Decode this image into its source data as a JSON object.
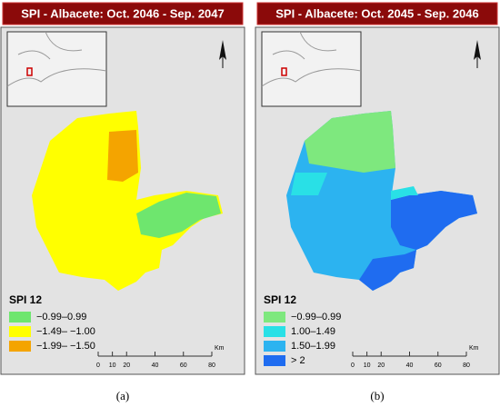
{
  "panels": [
    {
      "title": "SPI - Albacete: Oct. 2046 - Sep. 2047",
      "legend": {
        "title": "SPI 12",
        "items": [
          {
            "label": "−0.99–0.99",
            "color": "#6ee66e"
          },
          {
            "label": "−1.49– −1.00",
            "color": "#ffff00"
          },
          {
            "label": "−1.99– −1.50",
            "color": "#f4a400"
          }
        ]
      },
      "scale": {
        "ticks": [
          0,
          10,
          20,
          40,
          60,
          80
        ],
        "unit": "Km"
      },
      "caption": "(a)"
    },
    {
      "title": "SPI - Albacete: Oct. 2045 - Sep. 2046",
      "legend": {
        "title": "SPI 12",
        "items": [
          {
            "label": "−0.99–0.99",
            "color": "#7ee87e"
          },
          {
            "label": "1.00–1.49",
            "color": "#29e0e6"
          },
          {
            "label": "1.50–1.99",
            "color": "#2cb3f0"
          },
          {
            "label": "> 2",
            "color": "#1f6cf0"
          }
        ]
      },
      "scale": {
        "ticks": [
          0,
          10,
          20,
          40,
          60,
          80
        ],
        "unit": "Km"
      },
      "caption": "(b)"
    }
  ]
}
